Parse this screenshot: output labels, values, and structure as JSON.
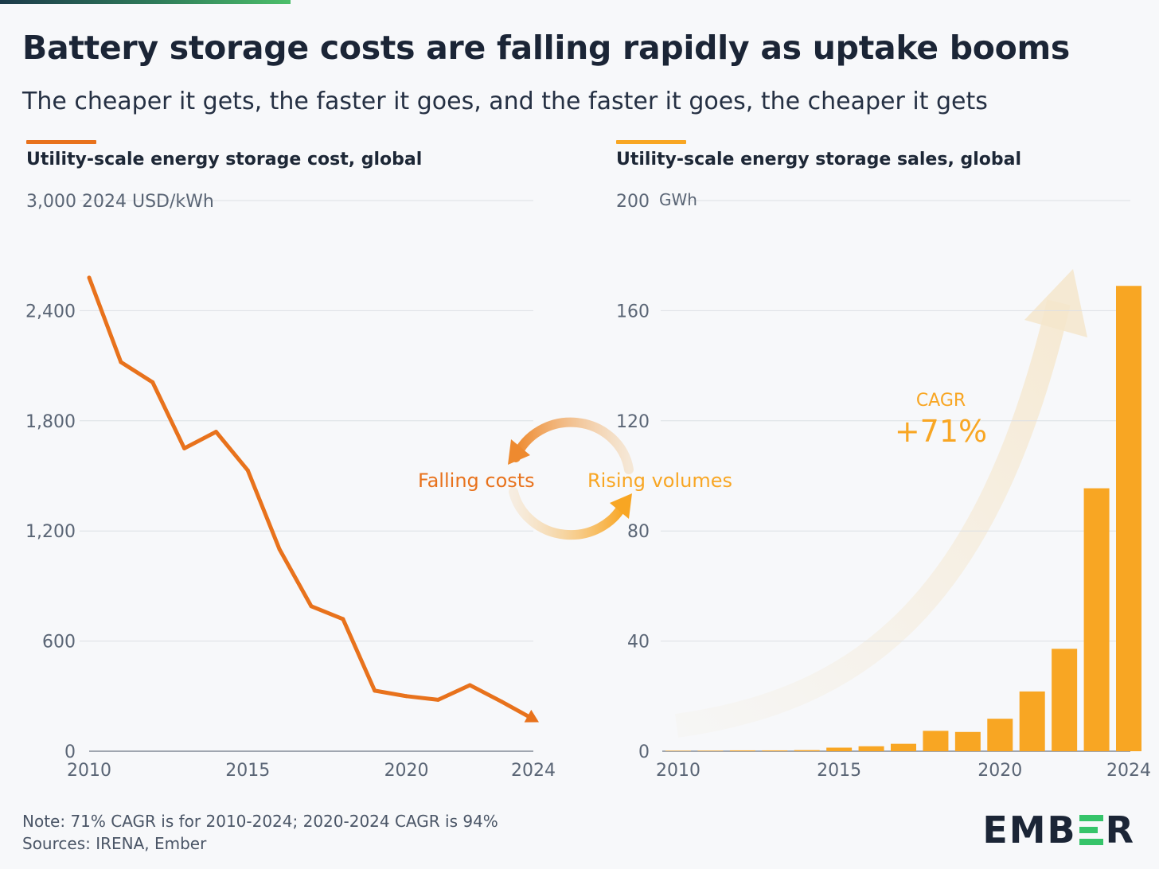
{
  "title": "Battery storage costs are falling rapidly as uptake booms",
  "subtitle": "The cheaper it gets, the faster it goes, and the faster it goes, the cheaper it gets",
  "colors": {
    "cost_line": "#e8721c",
    "sales_bar": "#f8a623",
    "grid": "#dcdfe4",
    "axis_text": "#5a6575"
  },
  "cycle": {
    "falling_label": "Falling costs",
    "rising_label": "Rising volumes"
  },
  "cagr": {
    "label": "CAGR",
    "value": "+71%"
  },
  "note": {
    "line1": "Note: 71% CAGR is for 2010-2024; 2020-2024 CAGR is 94%",
    "line2": "Sources: IRENA, Ember"
  },
  "logo": {
    "left": "EMB",
    "right": "R"
  },
  "chart_data": [
    {
      "type": "line",
      "title": "Utility-scale energy storage cost, global",
      "ylabel": "2024 USD/kWh",
      "x": [
        2010,
        2011,
        2012,
        2013,
        2014,
        2015,
        2016,
        2017,
        2018,
        2019,
        2020,
        2021,
        2022,
        2023,
        2024
      ],
      "values": [
        2580,
        2120,
        2010,
        1650,
        1740,
        1530,
        1100,
        790,
        720,
        330,
        300,
        280,
        360,
        270,
        175
      ],
      "xticks": [
        "2010",
        "2015",
        "2020",
        "2024"
      ],
      "yticks": [
        "0",
        "600",
        "1,200",
        "1,800",
        "2,400",
        "3,000"
      ],
      "ytick_values": [
        0,
        600,
        1200,
        1800,
        2400,
        3000
      ],
      "xlim": [
        2010,
        2024
      ],
      "ylim": [
        0,
        3000
      ],
      "grid": true
    },
    {
      "type": "bar",
      "title": "Utility-scale energy storage sales, global",
      "ylabel": "GWh",
      "categories": [
        2010,
        2011,
        2012,
        2013,
        2014,
        2015,
        2016,
        2017,
        2018,
        2019,
        2020,
        2021,
        2022,
        2023,
        2024
      ],
      "values": [
        0.1,
        0.2,
        0.3,
        0.3,
        0.4,
        1.3,
        1.8,
        2.7,
        7.4,
        7.0,
        11.8,
        21.7,
        37.2,
        95.5,
        169.0
      ],
      "xticks": [
        "2010",
        "2015",
        "2020",
        "2024"
      ],
      "yticks": [
        "0",
        "40",
        "80",
        "120",
        "160",
        "200"
      ],
      "ytick_values": [
        0,
        40,
        80,
        120,
        160,
        200
      ],
      "ylim": [
        0,
        200
      ],
      "grid": true
    }
  ]
}
